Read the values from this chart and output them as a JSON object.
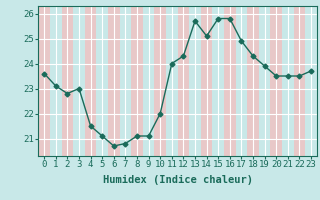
{
  "x": [
    0,
    1,
    2,
    3,
    4,
    5,
    6,
    7,
    8,
    9,
    10,
    11,
    12,
    13,
    14,
    15,
    16,
    17,
    18,
    19,
    20,
    21,
    22,
    23
  ],
  "y": [
    23.6,
    23.1,
    22.8,
    23.0,
    21.5,
    21.1,
    20.7,
    20.8,
    21.1,
    21.1,
    22.0,
    24.0,
    24.3,
    25.7,
    25.1,
    25.8,
    25.8,
    24.9,
    24.3,
    23.9,
    23.5,
    23.5,
    23.5,
    23.7
  ],
  "line_color": "#1a6b5a",
  "marker": "D",
  "marker_size": 2.5,
  "bg_color": "#c8e8e8",
  "stripe_color": "#e8c8c8",
  "grid_color": "#ffffff",
  "xlabel": "Humidex (Indice chaleur)",
  "ylim": [
    20.3,
    26.3
  ],
  "xlim": [
    -0.5,
    23.5
  ],
  "yticks": [
    21,
    22,
    23,
    24,
    25,
    26
  ],
  "xticks": [
    0,
    1,
    2,
    3,
    4,
    5,
    6,
    7,
    8,
    9,
    10,
    11,
    12,
    13,
    14,
    15,
    16,
    17,
    18,
    19,
    20,
    21,
    22,
    23
  ],
  "xlabel_fontsize": 7.5,
  "tick_fontsize": 6.5
}
